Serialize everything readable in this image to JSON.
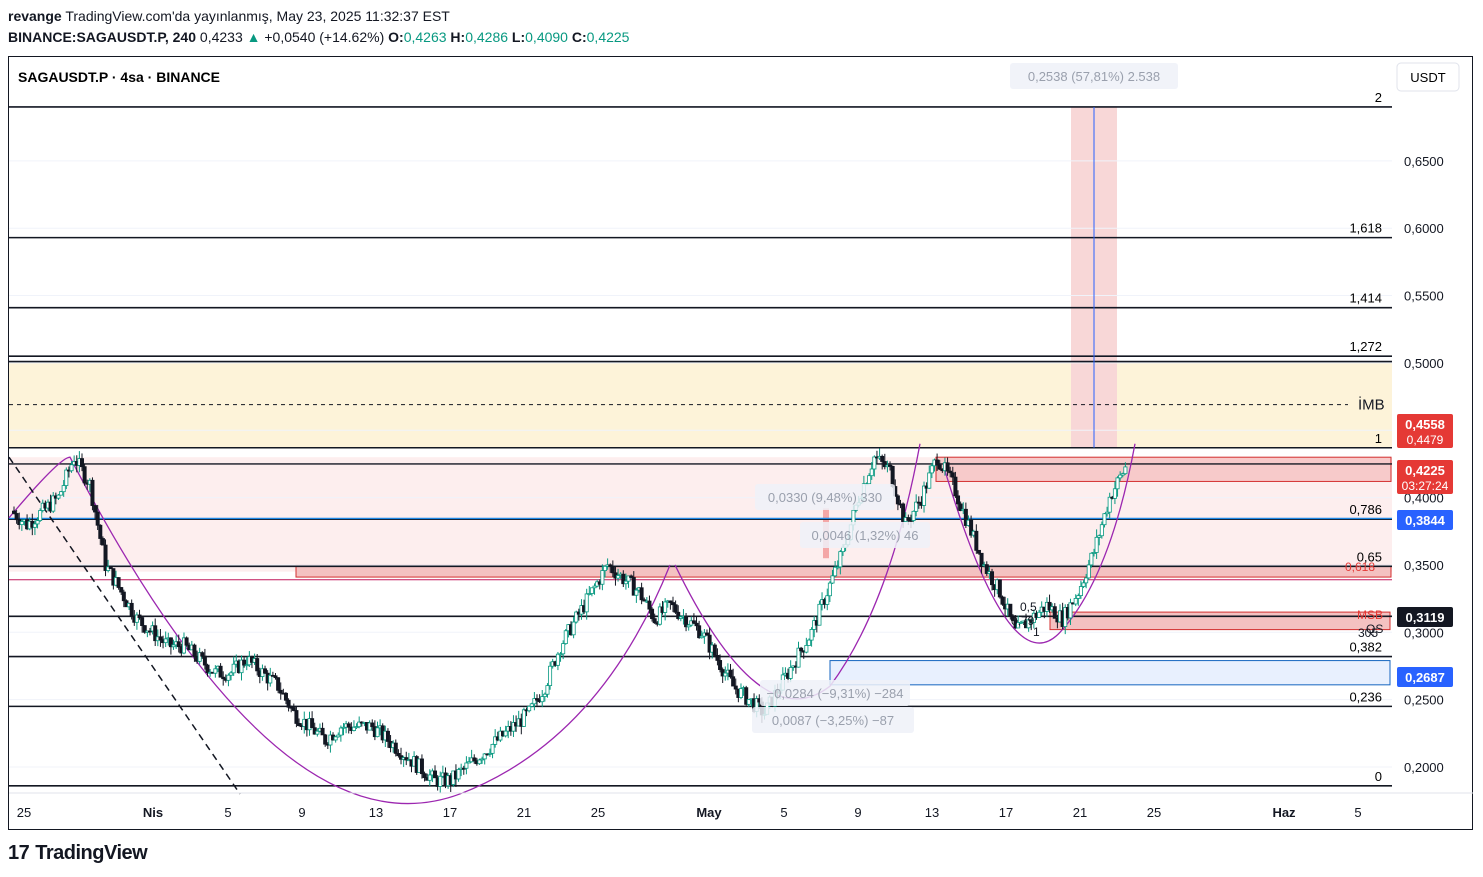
{
  "header": {
    "author": "revange",
    "published": "TradingView.com'da yayınlanmış, May 23, 2025 11:32:37 EST",
    "symbol_interval": "BINANCE:SAGAUSDT.P, 240",
    "last": "0,4233",
    "change": "+0,0540 (+14.62%)",
    "o_label": "O:",
    "o": "0,4263",
    "h_label": "H:",
    "h": "0,4286",
    "l_label": "L:",
    "l": "0,4090",
    "c_label": "C:",
    "c": "0,4225"
  },
  "chart_title": "SAGAUSDT.P · 4sa · BINANCE",
  "currency_button": "USDT",
  "footer": {
    "brand": "TradingView"
  },
  "colors": {
    "up": "#089981",
    "down": "#131722",
    "pink_zone": "#f8d7d7",
    "yellow_zone": "#fdf3d9",
    "price_red": "#e53935",
    "price_blue": "#2962ff",
    "fib_line": "#131722",
    "purple": "#9c27b0"
  },
  "chart_data": {
    "type": "candlestick",
    "x_tick_labels": [
      "25",
      "Nis",
      "5",
      "9",
      "13",
      "17",
      "21",
      "25",
      "May",
      "5",
      "9",
      "13",
      "17",
      "21",
      "25",
      "Haz",
      "5"
    ],
    "y_tick_labels": [
      "0,6500",
      "0,6000",
      "0,5500",
      "0,5000",
      "0,4500",
      "0,4000",
      "0,3500",
      "0,3000",
      "0,2500",
      "0,2000"
    ],
    "y_range": [
      0.18,
      0.7
    ],
    "fib_levels": [
      {
        "ratio": "2",
        "price": 0.69
      },
      {
        "ratio": "1,618",
        "price": 0.593
      },
      {
        "ratio": "1,414",
        "price": 0.541
      },
      {
        "ratio": "1,272",
        "price": 0.505
      },
      {
        "ratio": "1",
        "price": 0.437
      },
      {
        "ratio": "0,786",
        "price": 0.384
      },
      {
        "ratio": "0,65",
        "price": 0.349
      },
      {
        "ratio": "0,382",
        "price": 0.282
      },
      {
        "ratio": "0,236",
        "price": 0.245
      },
      {
        "ratio": "0",
        "price": 0.186
      }
    ],
    "extra_labels": [
      "İMB",
      "MSB",
      "0,618",
      "0,5",
      "0,79",
      "1",
      "QS",
      "305"
    ],
    "price_badges": [
      {
        "text": "0,4558",
        "sub": "0,4479",
        "color": "#e53935"
      },
      {
        "text": "0,4225",
        "sub": "03:27:24",
        "color": "#e53935"
      },
      {
        "text": "0,3844",
        "color": "#2962ff"
      },
      {
        "text": "0,3119",
        "color": "#131722"
      },
      {
        "text": "0,2687",
        "color": "#2962ff"
      }
    ],
    "measure_labels": [
      "0,2538 (57,81%) 2.538",
      "0,0330 (9,48%) 330",
      "0,0046 (1,32%) 46",
      "−0,0284 (−9,31%) −284",
      "0,0087 (−3,25%) −87"
    ],
    "close_path": [
      0.39,
      0.38,
      0.39,
      0.4,
      0.43,
      0.41,
      0.35,
      0.33,
      0.31,
      0.3,
      0.29,
      0.29,
      0.28,
      0.27,
      0.27,
      0.28,
      0.27,
      0.26,
      0.24,
      0.23,
      0.22,
      0.23,
      0.23,
      0.23,
      0.22,
      0.21,
      0.2,
      0.19,
      0.19,
      0.2,
      0.21,
      0.22,
      0.23,
      0.24,
      0.26,
      0.29,
      0.31,
      0.33,
      0.35,
      0.34,
      0.33,
      0.31,
      0.32,
      0.31,
      0.3,
      0.28,
      0.26,
      0.25,
      0.24,
      0.26,
      0.28,
      0.3,
      0.33,
      0.36,
      0.4,
      0.43,
      0.42,
      0.38,
      0.4,
      0.43,
      0.41,
      0.38,
      0.35,
      0.33,
      0.3,
      0.31,
      0.32,
      0.31,
      0.33,
      0.36,
      0.4,
      0.4225
    ]
  }
}
